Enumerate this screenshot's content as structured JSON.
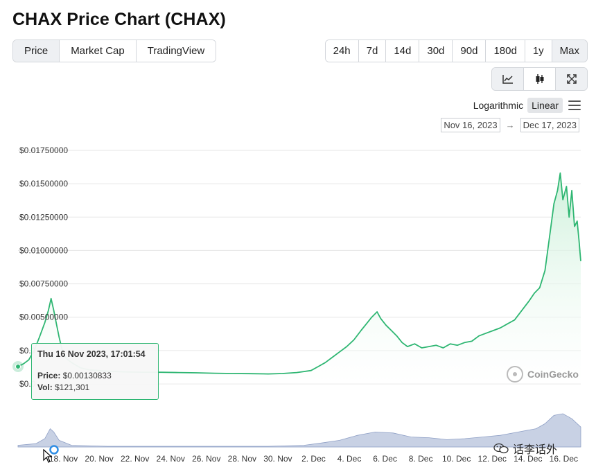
{
  "page": {
    "title": "CHAX Price Chart (CHAX)"
  },
  "view_tabs": [
    {
      "label": "Price",
      "active": true
    },
    {
      "label": "Market Cap",
      "active": false
    },
    {
      "label": "TradingView",
      "active": false
    }
  ],
  "range_tabs": [
    {
      "label": "24h",
      "active": false
    },
    {
      "label": "7d",
      "active": false
    },
    {
      "label": "14d",
      "active": false
    },
    {
      "label": "30d",
      "active": false
    },
    {
      "label": "90d",
      "active": false
    },
    {
      "label": "180d",
      "active": false
    },
    {
      "label": "1y",
      "active": false
    },
    {
      "label": "Max",
      "active": true
    }
  ],
  "chart_type_icons": [
    "line-chart-icon",
    "candlestick-icon",
    "fullscreen-icon"
  ],
  "scale": {
    "logarithmic": "Logarithmic",
    "linear": "Linear",
    "active": "Linear"
  },
  "date_range": {
    "from": "Nov 16, 2023",
    "arrow": "→",
    "to": "Dec 17, 2023"
  },
  "tooltip": {
    "date": "Thu 16 Nov 2023, 17:01:54",
    "price_label": "Price:",
    "price_value": "$0.00130833",
    "vol_label": "Vol:",
    "vol_value": "$121,301"
  },
  "brand": {
    "coingecko": "CoinGecko",
    "wechat": "话李话外"
  },
  "colors": {
    "line": "#2eb672",
    "fill_top": "#c9efd7",
    "volume": "#aab8d6",
    "grid": "#e6e6e6"
  },
  "chart_data": {
    "type": "area",
    "title": "",
    "xlabel": "",
    "ylabel": "",
    "y_tick_labels": [
      "$0.01750000",
      "$0.01500000",
      "$0.01250000",
      "$0.01000000",
      "$0.00750000",
      "$0.00500000",
      "$0.0",
      "$0.0"
    ],
    "y_ticks": [
      0.0175,
      0.015,
      0.0125,
      0.01,
      0.0075,
      0.005,
      0.0025,
      0.0
    ],
    "ylim": [
      -0.0005,
      0.0175
    ],
    "x_tick_labels": [
      "18. Nov",
      "20. Nov",
      "22. Nov",
      "24. Nov",
      "26. Nov",
      "28. Nov",
      "30. Nov",
      "2. Dec",
      "4. Dec",
      "6. Dec",
      "8. Dec",
      "10. Dec",
      "12. Dec",
      "14. Dec",
      "16. Dec"
    ],
    "x_tick_days": [
      2,
      4,
      6,
      8,
      10,
      12,
      14,
      16,
      18,
      20,
      22,
      24,
      26,
      28,
      30
    ],
    "xlim_days": [
      0,
      31.5
    ],
    "grid": true,
    "price_series": {
      "name": "Price",
      "x_days": [
        0.0,
        0.3,
        0.6,
        0.9,
        1.2,
        1.5,
        1.7,
        1.85,
        2.0,
        2.15,
        2.3,
        2.5,
        2.7,
        3.0,
        3.5,
        4.0,
        4.5,
        5.0,
        6.0,
        7.0,
        8.0,
        9.0,
        10.0,
        11.0,
        12.0,
        13.0,
        14.0,
        14.8,
        15.6,
        16.4,
        16.8,
        17.2,
        17.6,
        18.0,
        18.4,
        18.8,
        19.2,
        19.5,
        19.8,
        20.1,
        20.3,
        20.6,
        20.9,
        21.2,
        21.5,
        21.8,
        22.2,
        22.6,
        23.0,
        23.4,
        23.8,
        24.2,
        24.6,
        25.0,
        25.4,
        25.8,
        26.2,
        26.6,
        27.0,
        27.4,
        27.8,
        28.2,
        28.6,
        28.9,
        29.2,
        29.5,
        29.8,
        30.0,
        30.2,
        30.35,
        30.5,
        30.7,
        30.85,
        31.0,
        31.15,
        31.3,
        31.4,
        31.5
      ],
      "y": [
        0.0013,
        0.0015,
        0.0018,
        0.0025,
        0.0035,
        0.0046,
        0.0055,
        0.0064,
        0.0055,
        0.0045,
        0.0035,
        0.0024,
        0.0019,
        0.0016,
        0.0012,
        0.00105,
        0.001,
        0.00095,
        0.0009,
        0.00088,
        0.00087,
        0.00085,
        0.00083,
        0.0008,
        0.00078,
        0.00077,
        0.00075,
        0.00078,
        0.00085,
        0.001,
        0.0013,
        0.0016,
        0.002,
        0.0024,
        0.0028,
        0.0033,
        0.004,
        0.0045,
        0.005,
        0.0054,
        0.0049,
        0.0044,
        0.004,
        0.0036,
        0.0031,
        0.0028,
        0.003,
        0.0027,
        0.0028,
        0.0029,
        0.0027,
        0.003,
        0.0029,
        0.0031,
        0.0032,
        0.0036,
        0.0038,
        0.004,
        0.0042,
        0.0045,
        0.0048,
        0.0055,
        0.0062,
        0.0068,
        0.0072,
        0.0085,
        0.0115,
        0.0135,
        0.0145,
        0.0158,
        0.0138,
        0.0148,
        0.0125,
        0.0145,
        0.0118,
        0.0122,
        0.0108,
        0.0092
      ]
    },
    "volume_series": {
      "name": "Vol",
      "x_days": [
        0,
        1,
        1.5,
        1.8,
        2.0,
        2.3,
        3,
        5,
        8,
        11,
        14,
        16,
        17,
        18,
        19,
        20,
        21,
        22,
        23,
        24,
        25,
        26,
        27,
        28,
        29,
        29.5,
        30,
        30.5,
        31,
        31.5
      ],
      "values": [
        0.05,
        0.1,
        0.25,
        0.55,
        0.45,
        0.2,
        0.05,
        0.02,
        0.02,
        0.02,
        0.02,
        0.05,
        0.12,
        0.2,
        0.35,
        0.45,
        0.42,
        0.3,
        0.28,
        0.22,
        0.25,
        0.3,
        0.35,
        0.45,
        0.55,
        0.7,
        0.95,
        1.0,
        0.85,
        0.6
      ]
    },
    "tooltip_point_day": 0.0
  }
}
